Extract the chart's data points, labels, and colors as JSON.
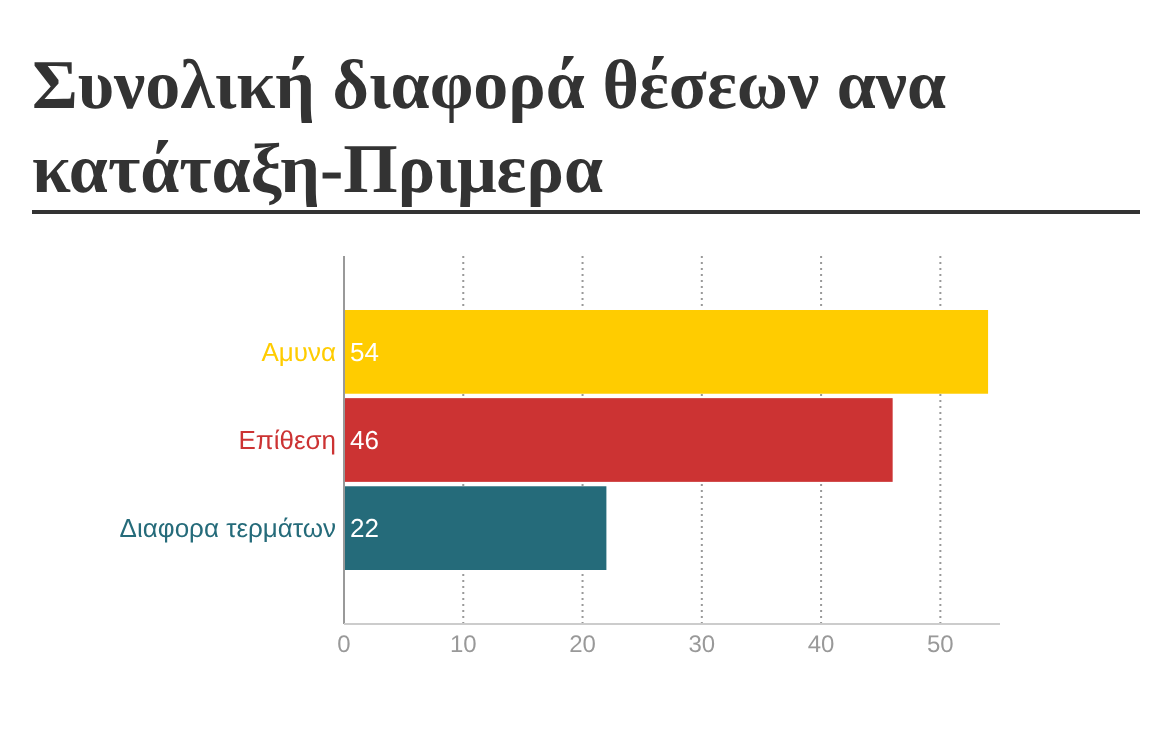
{
  "chart_data": {
    "type": "bar",
    "orientation": "horizontal",
    "title": "Συνολική διαφορά θέσεων ανα κατάταξη-Πριμερα",
    "categories": [
      "Αμυνα",
      "Επίθεση",
      "Διαφορα τερμάτων"
    ],
    "values": [
      54,
      46,
      22
    ],
    "colors": [
      "#ffcc00",
      "#cc3333",
      "#256b7a"
    ],
    "xlim": [
      0,
      55
    ],
    "xticks": [
      0,
      10,
      20,
      30,
      40,
      50
    ],
    "grid": "x",
    "data_labels": true
  }
}
